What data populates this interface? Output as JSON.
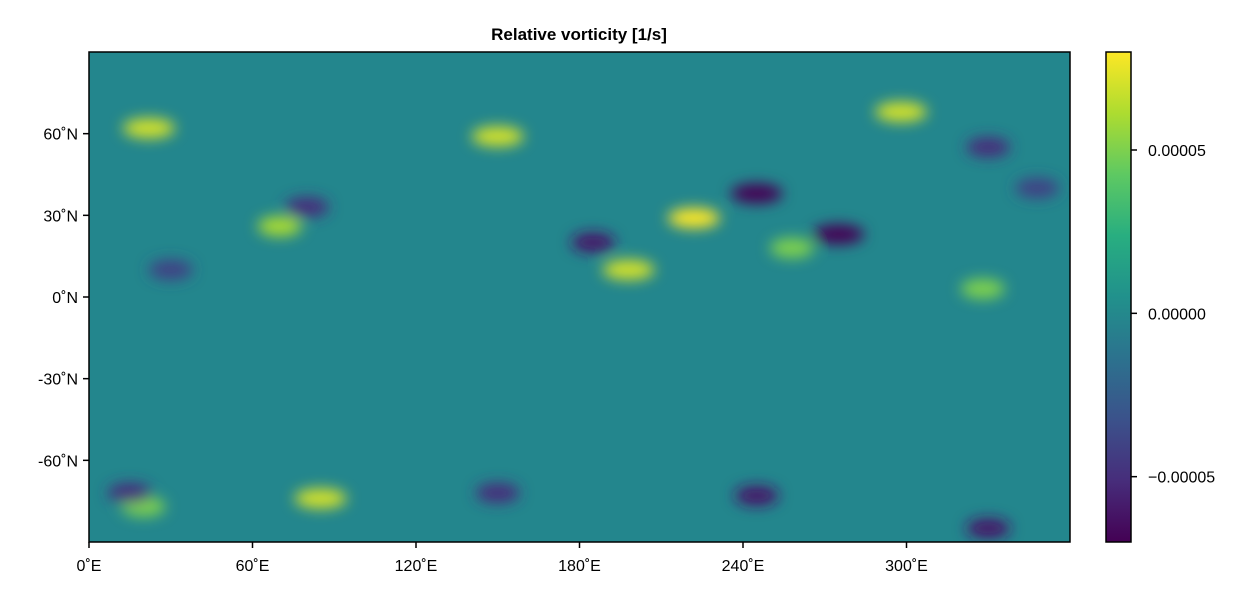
{
  "chart_data": {
    "type": "heatmap",
    "title": "Relative vorticity [1/s]",
    "xlabel": "",
    "ylabel": "",
    "x_range": [
      0,
      360
    ],
    "y_range": [
      -90,
      90
    ],
    "x_ticks": [
      {
        "value": 0,
        "label": "0˚E"
      },
      {
        "value": 60,
        "label": "60˚E"
      },
      {
        "value": 120,
        "label": "120˚E"
      },
      {
        "value": 180,
        "label": "180˚E"
      },
      {
        "value": 240,
        "label": "240˚E"
      },
      {
        "value": 300,
        "label": "300˚E"
      }
    ],
    "y_ticks": [
      {
        "value": 60,
        "label": "60˚N"
      },
      {
        "value": 30,
        "label": "30˚N"
      },
      {
        "value": 0,
        "label": "0˚N"
      },
      {
        "value": -30,
        "label": "-30˚N"
      },
      {
        "value": -60,
        "label": "-60˚N"
      }
    ],
    "colormap": "viridis",
    "colorbar": {
      "range": [
        -7e-05,
        8e-05
      ],
      "ticks": [
        {
          "value": 5e-05,
          "label": "0.00005"
        },
        {
          "value": 0.0,
          "label": "0.00000"
        },
        {
          "value": -5e-05,
          "label": "−0.00005"
        }
      ]
    },
    "features": [
      {
        "lon": 22,
        "lat": 62,
        "value": 7e-05
      },
      {
        "lon": 150,
        "lat": 59,
        "value": 7e-05
      },
      {
        "lon": 222,
        "lat": 29,
        "value": 8e-05
      },
      {
        "lon": 298,
        "lat": 68,
        "value": 7e-05
      },
      {
        "lon": 70,
        "lat": 26,
        "value": 6e-05
      },
      {
        "lon": 198,
        "lat": 10,
        "value": 7e-05
      },
      {
        "lon": 85,
        "lat": -74,
        "value": 7e-05
      },
      {
        "lon": 20,
        "lat": -77,
        "value": 5e-05
      },
      {
        "lon": 258,
        "lat": 18,
        "value": 5e-05
      },
      {
        "lon": 328,
        "lat": 3,
        "value": 5e-05
      },
      {
        "lon": 245,
        "lat": 38,
        "value": -7e-05
      },
      {
        "lon": 275,
        "lat": 23,
        "value": -7e-05
      },
      {
        "lon": 185,
        "lat": 20,
        "value": -6e-05
      },
      {
        "lon": 80,
        "lat": 33,
        "value": -5e-05
      },
      {
        "lon": 30,
        "lat": 10,
        "value": -4e-05
      },
      {
        "lon": 245,
        "lat": -73,
        "value": -6e-05
      },
      {
        "lon": 15,
        "lat": -72,
        "value": -5e-05
      },
      {
        "lon": 150,
        "lat": -72,
        "value": -5e-05
      },
      {
        "lon": 330,
        "lat": -85,
        "value": -6e-05
      },
      {
        "lon": 330,
        "lat": 55,
        "value": -5e-05
      },
      {
        "lon": 348,
        "lat": 40,
        "value": -4e-05
      }
    ]
  }
}
